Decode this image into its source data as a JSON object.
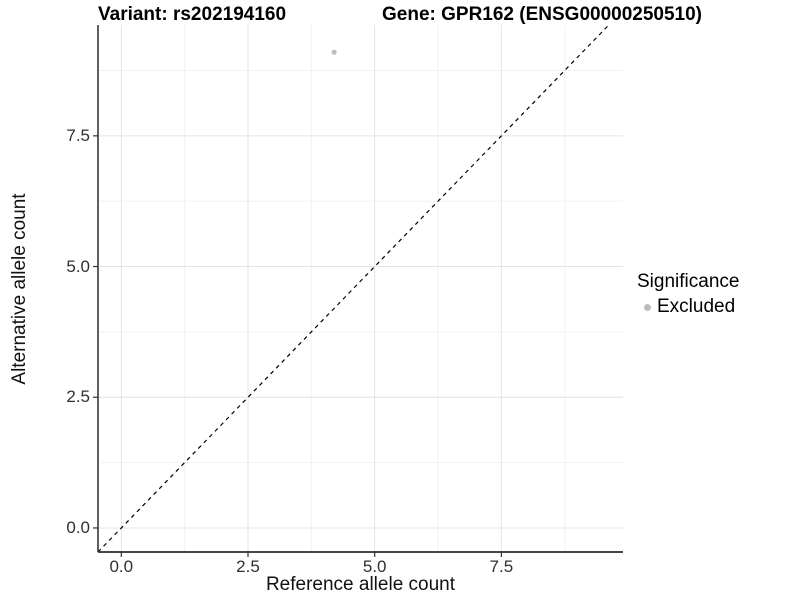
{
  "chart_data": {
    "type": "scatter",
    "title_left": "Variant: rs202194160",
    "title_right": "Gene: GPR162 (ENSG00000250510)",
    "xlabel": "Reference allele count",
    "ylabel": "Alternative allele count",
    "xlim": [
      -0.46,
      9.9
    ],
    "ylim": [
      -0.46,
      9.62
    ],
    "x_ticks": {
      "values": [
        0,
        2.5,
        5,
        7.5
      ],
      "labels": [
        "0.0",
        "2.5",
        "5.0",
        "7.5"
      ]
    },
    "y_ticks": {
      "values": [
        0,
        2.5,
        5,
        7.5
      ],
      "labels": [
        "0.0",
        "2.5",
        "5.0",
        "7.5"
      ]
    },
    "x_minor": [
      1.25,
      3.75,
      6.25,
      8.75
    ],
    "y_minor": [
      1.25,
      3.75,
      6.25,
      8.75
    ],
    "grid": true,
    "series": [
      {
        "name": "Excluded",
        "marker": "circle",
        "color": "#bdbdbd",
        "points": [
          {
            "x": 4.2,
            "y": 9.1
          }
        ]
      }
    ],
    "reference_line": {
      "type": "identity",
      "slope": 1,
      "intercept": 0,
      "style": "dashed",
      "color": "#000000"
    },
    "legend": {
      "title": "Significance",
      "position": "right",
      "entries": [
        {
          "label": "Excluded",
          "color": "#bdbdbd",
          "marker": "circle"
        }
      ]
    },
    "colors": {
      "background": "#ffffff",
      "grid_major": "#e4e4e4",
      "grid_minor": "#f2f2f2",
      "axis_line": "#2b2b2b",
      "tick_mark": "#333333",
      "tick_text": "#303030",
      "title_text": "#000000",
      "point": "#bdbdbd"
    }
  }
}
